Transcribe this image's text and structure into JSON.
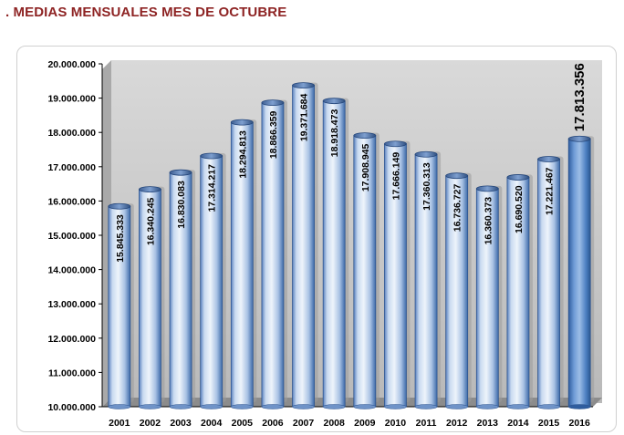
{
  "header": {
    "title": ". MEDIAS MENSUALES MES DE OCTUBRE"
  },
  "colors": {
    "title": "#8e2424",
    "bar_light": "#ffffff",
    "bar_mid": "#b7cdea",
    "bar_dark": "#3f6fb0",
    "bar_highlight": "#4f86cc",
    "wall": "#c8c8c8",
    "floor": "#8c8c8c"
  },
  "chart_data": {
    "type": "bar",
    "categories": [
      "2001",
      "2002",
      "2003",
      "2004",
      "2005",
      "2006",
      "2007",
      "2008",
      "2009",
      "2010",
      "2011",
      "2012",
      "2013",
      "2014",
      "2015",
      "2016"
    ],
    "values": [
      15845333,
      16340245,
      16830083,
      17314217,
      18294813,
      18866359,
      19371684,
      18918473,
      17908945,
      17666149,
      17360313,
      16736727,
      16360373,
      16690520,
      17221467,
      17813356
    ],
    "data_labels": [
      "15.845.333",
      "16.340.245",
      "16.830.083",
      "17.314.217",
      "18.294.813",
      "18.866.359",
      "19.371.684",
      "18.918.473",
      "17.908.945",
      "17.666.149",
      "17.360.313",
      "16.736.727",
      "16.360.373",
      "16.690.520",
      "17.221.467",
      "17.813.356"
    ],
    "y_ticks": [
      10000000,
      11000000,
      12000000,
      13000000,
      14000000,
      15000000,
      16000000,
      17000000,
      18000000,
      19000000,
      20000000
    ],
    "y_tick_labels": [
      "10.000.000",
      "11.000.000",
      "12.000.000",
      "13.000.000",
      "14.000.000",
      "15.000.000",
      "16.000.000",
      "17.000.000",
      "18.000.000",
      "19.000.000",
      "20.000.000"
    ],
    "ylim": [
      10000000,
      20000000
    ],
    "grid": false,
    "legend": "none",
    "highlighted_category": "2016",
    "style": "3d-cylinder"
  }
}
